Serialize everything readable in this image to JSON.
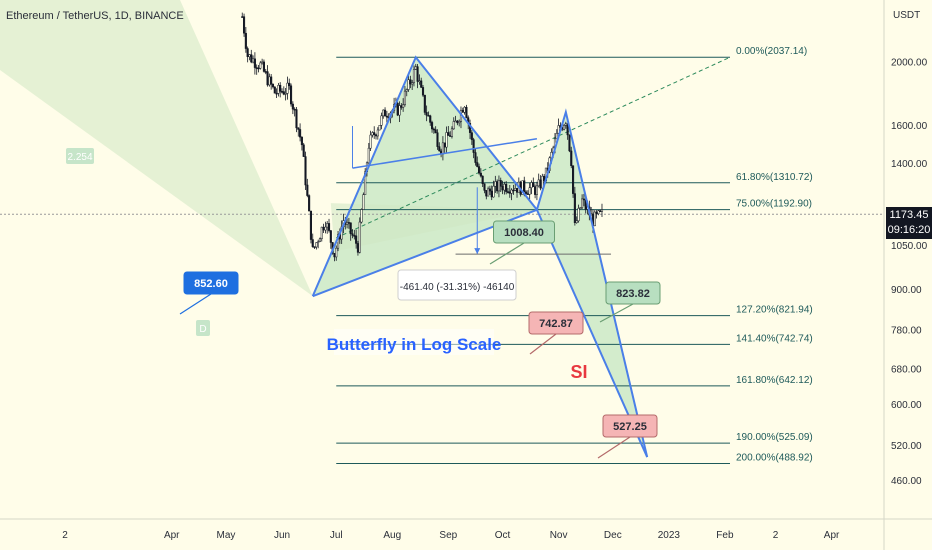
{
  "header": {
    "title": "Ethereum / TetherUS, 1D, BINANCE",
    "currency": "USDT"
  },
  "price_tag": {
    "price": "1173.45",
    "countdown": "09:16:20"
  },
  "colors": {
    "background": "#fffde9",
    "candle": "#131722",
    "pattern_line": "#4a7fe8",
    "fib_line": "#1e5a5a",
    "fib_text": "#1e5a5a",
    "fill_green": "#9ed8a9",
    "fill_band": "#cfe8c3",
    "label_blue": "#1e6fe0",
    "label_green": "#b8dfc0",
    "label_red": "#f5b5b5",
    "si_text": "#e8383f",
    "butterfly_text": "#2962ff"
  },
  "chart_data": {
    "type": "candlestick",
    "title": "Ethereum / TetherUS, 1D, BINANCE",
    "y_scale": "log",
    "ylim": [
      430,
      2330
    ],
    "x_range": [
      "2021-12-27",
      "2023-04-30"
    ],
    "x_ticks": [
      {
        "label": "2",
        "date": "2022-02-01"
      },
      {
        "label": "Apr",
        "date": "2022-04-01"
      },
      {
        "label": "May",
        "date": "2022-05-01"
      },
      {
        "label": "Jun",
        "date": "2022-06-01"
      },
      {
        "label": "Jul",
        "date": "2022-07-01"
      },
      {
        "label": "Aug",
        "date": "2022-08-01"
      },
      {
        "label": "Sep",
        "date": "2022-09-01"
      },
      {
        "label": "Oct",
        "date": "2022-10-01"
      },
      {
        "label": "Nov",
        "date": "2022-11-01"
      },
      {
        "label": "Dec",
        "date": "2022-12-01"
      },
      {
        "label": "2023",
        "date": "2023-01-01"
      },
      {
        "label": "Feb",
        "date": "2023-02-01"
      },
      {
        "label": "2",
        "date": "2023-03-01"
      },
      {
        "label": "Apr",
        "date": "2023-04-01"
      }
    ],
    "y_ticks": [
      2000,
      1600,
      1400,
      1050,
      900,
      780,
      680,
      600,
      520,
      460
    ],
    "y_tick_labels": [
      "2000.00",
      "1600.00",
      "1400.00",
      "1050.00",
      "900.00",
      "780.00",
      "680.00",
      "600.00",
      "520.00",
      "460.00"
    ],
    "price_path": [
      [
        "2022-05-10",
        2350
      ],
      [
        "2022-05-13",
        2050
      ],
      [
        "2022-05-20",
        1980
      ],
      [
        "2022-05-28",
        1800
      ],
      [
        "2022-06-05",
        1820
      ],
      [
        "2022-06-12",
        1500
      ],
      [
        "2022-06-18",
        1030
      ],
      [
        "2022-06-25",
        1150
      ],
      [
        "2022-06-30",
        1020
      ],
      [
        "2022-07-05",
        1150
      ],
      [
        "2022-07-13",
        1050
      ],
      [
        "2022-07-19",
        1500
      ],
      [
        "2022-07-28",
        1680
      ],
      [
        "2022-08-05",
        1700
      ],
      [
        "2022-08-14",
        1960
      ],
      [
        "2022-08-19",
        1700
      ],
      [
        "2022-08-28",
        1480
      ],
      [
        "2022-09-04",
        1590
      ],
      [
        "2022-09-10",
        1740
      ],
      [
        "2022-09-15",
        1460
      ],
      [
        "2022-09-21",
        1260
      ],
      [
        "2022-09-30",
        1300
      ],
      [
        "2022-10-10",
        1290
      ],
      [
        "2022-10-20",
        1280
      ],
      [
        "2022-10-25",
        1350
      ],
      [
        "2022-11-01",
        1580
      ],
      [
        "2022-11-05",
        1640
      ],
      [
        "2022-11-08",
        1420
      ],
      [
        "2022-11-10",
        1120
      ],
      [
        "2022-11-14",
        1230
      ],
      [
        "2022-11-20",
        1150
      ],
      [
        "2022-11-25",
        1173
      ]
    ],
    "fib_levels": [
      {
        "label": "0.00%(2037.14)",
        "price": 2037.14
      },
      {
        "label": "61.80%(1310.72)",
        "price": 1310.72
      },
      {
        "label": "75.00%(1192.90)",
        "price": 1192.9
      },
      {
        "label": "127.20%(821.94)",
        "price": 821.94
      },
      {
        "label": "141.40%(742.74)",
        "price": 742.74
      },
      {
        "label": "161.80%(642.12)",
        "price": 642.12
      },
      {
        "label": "190.00%(525.09)",
        "price": 525.09
      },
      {
        "label": "200.00%(488.92)",
        "price": 488.92
      }
    ],
    "pattern_points": [
      {
        "date": "2022-06-18",
        "price": 880
      },
      {
        "date": "2022-08-14",
        "price": 2037
      },
      {
        "date": "2022-10-20",
        "price": 1192
      },
      {
        "date": "2022-11-05",
        "price": 1680
      },
      {
        "date": "2022-12-20",
        "price": 500
      }
    ],
    "annotations": {
      "ratio": "2.254",
      "point_d": "D",
      "measure": "-461.40 (-31.31%) -46140",
      "butterfly": "Butterfly in Log Scale",
      "si": "SI",
      "callouts": [
        {
          "text": "852.60",
          "style": "blue"
        },
        {
          "text": "1008.40",
          "style": "green"
        },
        {
          "text": "823.82",
          "style": "green"
        },
        {
          "text": "742.87",
          "style": "red"
        },
        {
          "text": "527.25",
          "style": "red"
        }
      ]
    }
  }
}
